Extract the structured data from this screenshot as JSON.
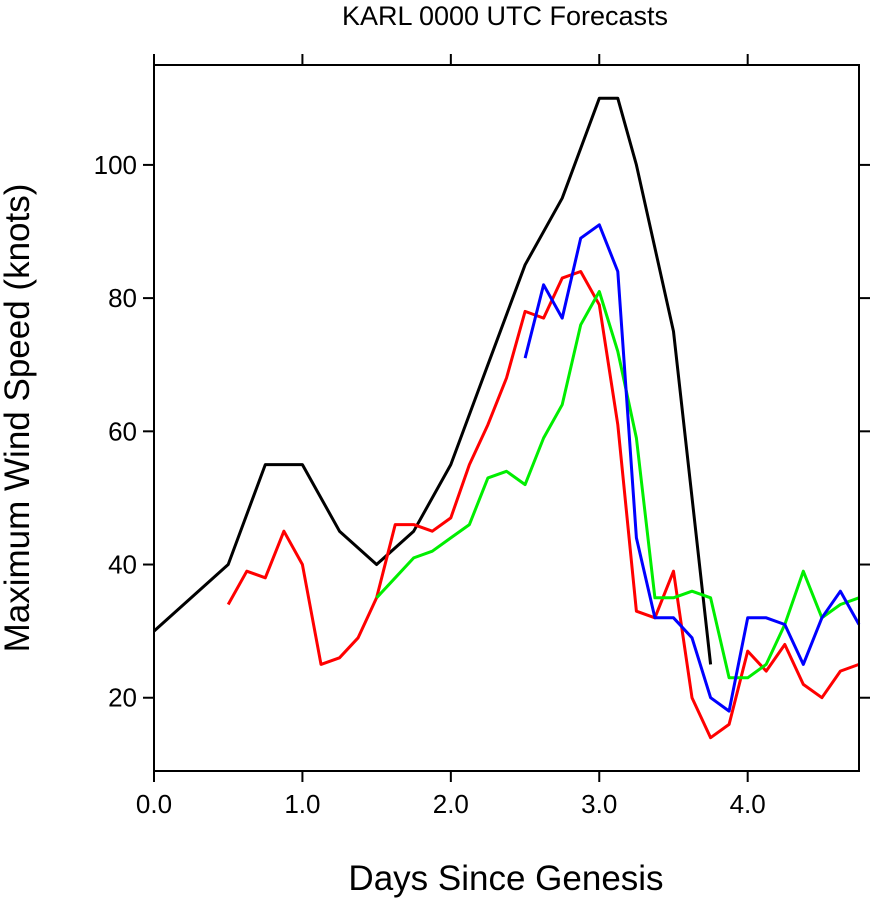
{
  "chart_data": {
    "type": "line",
    "title": "KARL 0000 UTC Forecasts",
    "xlabel": "Days Since Genesis",
    "ylabel": "Maximum Wind Speed (knots)",
    "xlim": [
      0,
      4.75
    ],
    "ylim": [
      9,
      115
    ],
    "xticks": [
      0,
      1,
      2,
      3,
      4
    ],
    "xtick_labels": [
      "0.0",
      "1.0",
      "2.0",
      "3.0",
      "4.0"
    ],
    "yticks": [
      20,
      40,
      60,
      80,
      100
    ],
    "ytick_labels": [
      "20",
      "40",
      "60",
      "80",
      "100"
    ],
    "legend": "none",
    "series": [
      {
        "color": "#000000",
        "x": [
          0,
          0.5,
          0.75,
          1.0,
          1.25,
          1.5,
          1.75,
          2.0,
          2.25,
          2.5,
          2.75,
          3.0,
          3.125,
          3.25,
          3.5,
          3.75
        ],
        "y": [
          30,
          40,
          55,
          55,
          45,
          40,
          45,
          55,
          70,
          85,
          95,
          110,
          110,
          100,
          75,
          25
        ]
      },
      {
        "color": "#ff0000",
        "x": [
          0.5,
          0.625,
          0.75,
          0.875,
          1.0,
          1.125,
          1.25,
          1.375,
          1.5,
          1.625,
          1.75,
          1.875,
          2.0,
          2.125,
          2.25,
          2.375,
          2.5,
          2.625,
          2.75,
          2.875,
          3.0,
          3.125,
          3.25,
          3.375,
          3.5,
          3.625,
          3.75,
          3.875,
          4.0,
          4.125,
          4.25,
          4.375,
          4.5,
          4.625,
          4.75
        ],
        "y": [
          34,
          39,
          38,
          45,
          40,
          25,
          26,
          29,
          35,
          46,
          46,
          45,
          47,
          55,
          61,
          68,
          78,
          77,
          83,
          84,
          79,
          61,
          33,
          32,
          39,
          20,
          14,
          16,
          27,
          24,
          28,
          22,
          20,
          24,
          25
        ]
      },
      {
        "color": "#00ee00",
        "x": [
          1.5,
          1.625,
          1.75,
          1.875,
          2.0,
          2.125,
          2.25,
          2.375,
          2.5,
          2.625,
          2.75,
          2.875,
          3.0,
          3.125,
          3.25,
          3.375,
          3.5,
          3.625,
          3.75,
          3.875,
          4.0,
          4.125,
          4.25,
          4.375,
          4.5,
          4.625,
          4.75
        ],
        "y": [
          35,
          38,
          41,
          42,
          44,
          46,
          53,
          54,
          52,
          59,
          64,
          76,
          81,
          72,
          59,
          35,
          35,
          36,
          35,
          23,
          23,
          25,
          31,
          39,
          32,
          34,
          35
        ]
      },
      {
        "color": "#0000ff",
        "x": [
          2.5,
          2.625,
          2.75,
          2.875,
          3.0,
          3.125,
          3.25,
          3.375,
          3.5,
          3.625,
          3.75,
          3.875,
          4.0,
          4.125,
          4.25,
          4.375,
          4.5,
          4.625,
          4.75
        ],
        "y": [
          71,
          82,
          77,
          89,
          91,
          84,
          44,
          32,
          32,
          29,
          20,
          18,
          32,
          32,
          31,
          25,
          32,
          36,
          31
        ]
      }
    ]
  }
}
